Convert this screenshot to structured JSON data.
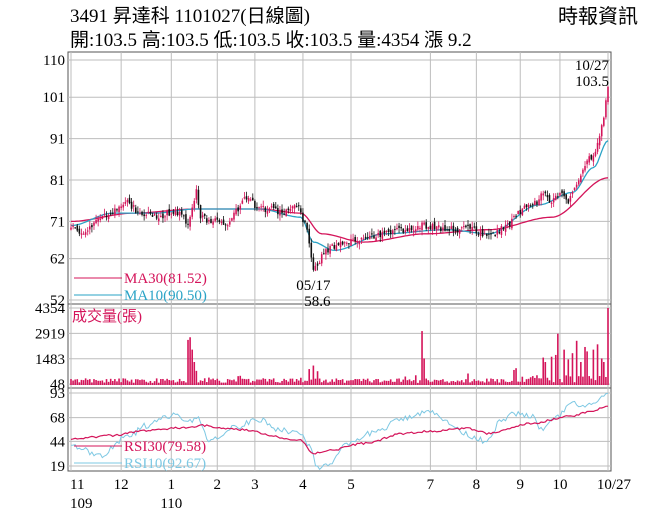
{
  "header": {
    "title": "3491  昇達科 1101027(日線圖)",
    "source": "時報資訊",
    "ohlc": "開:103.5 高:103.5 低:103.5 收:103.5 量:4354 漲 9.2"
  },
  "colors": {
    "up": "#d4145a",
    "down": "#111111",
    "ma30": "#d4145a",
    "ma10": "#2aa3c6",
    "volume": "#d4145a",
    "rsi30": "#d4145a",
    "rsi10": "#7ec8e3",
    "grid": "#bdbdbd"
  },
  "chart_data": [
    {
      "type": "candlestick",
      "panel": "price",
      "yticks": [
        "110",
        "101",
        "91",
        "81",
        "71",
        "62",
        "52"
      ],
      "ylim": [
        52,
        110
      ],
      "grid": true,
      "annotations": [
        {
          "label": "10/27",
          "value": "103.5",
          "x": 257,
          "y": 103.5
        },
        {
          "label": "05/17",
          "value": "58.6",
          "x": 116,
          "y": 58.6
        }
      ],
      "legend": [
        {
          "name": "MA30",
          "text": "MA30(81.52)",
          "color": "ma30"
        },
        {
          "name": "MA10",
          "text": "MA10(90.50)",
          "color": "ma10"
        }
      ],
      "anchors": [
        [
          0,
          69.5
        ],
        [
          6,
          68
        ],
        [
          12,
          71
        ],
        [
          18,
          72.5
        ],
        [
          26,
          75.5
        ],
        [
          34,
          73
        ],
        [
          42,
          72
        ],
        [
          50,
          73.5
        ],
        [
          56,
          71
        ],
        [
          58,
          74
        ],
        [
          60,
          79
        ],
        [
          62,
          72
        ],
        [
          68,
          71
        ],
        [
          74,
          70
        ],
        [
          80,
          74
        ],
        [
          84,
          77
        ],
        [
          90,
          74
        ],
        [
          96,
          74
        ],
        [
          102,
          73
        ],
        [
          108,
          75
        ],
        [
          112,
          71
        ],
        [
          114,
          66
        ],
        [
          116,
          60
        ],
        [
          118,
          61
        ],
        [
          122,
          64
        ],
        [
          128,
          65.5
        ],
        [
          134,
          66
        ],
        [
          140,
          67
        ],
        [
          150,
          68
        ],
        [
          160,
          69
        ],
        [
          168,
          70
        ],
        [
          176,
          69.5
        ],
        [
          184,
          69
        ],
        [
          190,
          70
        ],
        [
          196,
          68
        ],
        [
          202,
          68
        ],
        [
          208,
          69.5
        ],
        [
          214,
          73
        ],
        [
          218,
          74.5
        ],
        [
          222,
          75.5
        ],
        [
          226,
          77.5
        ],
        [
          230,
          76
        ],
        [
          234,
          78
        ],
        [
          238,
          76
        ],
        [
          242,
          80
        ],
        [
          246,
          84
        ],
        [
          248,
          86
        ],
        [
          251,
          88
        ],
        [
          253,
          92
        ],
        [
          255,
          96
        ],
        [
          257,
          103.5
        ]
      ],
      "ma30_anchors": [
        [
          0,
          71
        ],
        [
          30,
          73
        ],
        [
          60,
          74
        ],
        [
          90,
          74
        ],
        [
          110,
          73
        ],
        [
          120,
          68
        ],
        [
          140,
          66
        ],
        [
          170,
          68
        ],
        [
          200,
          69
        ],
        [
          230,
          72
        ],
        [
          257,
          81.52
        ]
      ],
      "ma10_anchors": [
        [
          0,
          70
        ],
        [
          20,
          73
        ],
        [
          40,
          73
        ],
        [
          60,
          74
        ],
        [
          90,
          74
        ],
        [
          110,
          72
        ],
        [
          116,
          66
        ],
        [
          126,
          64
        ],
        [
          150,
          68
        ],
        [
          180,
          69
        ],
        [
          200,
          68
        ],
        [
          224,
          75
        ],
        [
          240,
          78
        ],
        [
          250,
          84
        ],
        [
          257,
          90.5
        ]
      ]
    },
    {
      "type": "bar",
      "panel": "volume",
      "title": "成交量(張)",
      "yticks": [
        "4354",
        "2919",
        "1483",
        "48"
      ],
      "ylim": [
        0,
        4354
      ],
      "spikes": [
        [
          56,
          2550
        ],
        [
          57,
          2700
        ],
        [
          58,
          2000
        ],
        [
          59,
          1300
        ],
        [
          60,
          800
        ],
        [
          64,
          380
        ],
        [
          66,
          420
        ],
        [
          80,
          500
        ],
        [
          81,
          520
        ],
        [
          96,
          300
        ],
        [
          110,
          410
        ],
        [
          114,
          900
        ],
        [
          116,
          1100
        ],
        [
          118,
          780
        ],
        [
          160,
          480
        ],
        [
          165,
          550
        ],
        [
          168,
          3050
        ],
        [
          169,
          1500
        ],
        [
          190,
          650
        ],
        [
          212,
          850
        ],
        [
          213,
          950
        ],
        [
          222,
          400
        ],
        [
          226,
          1550
        ],
        [
          227,
          1300
        ],
        [
          230,
          1600
        ],
        [
          232,
          1700
        ],
        [
          233,
          2900
        ],
        [
          236,
          2000
        ],
        [
          238,
          1450
        ],
        [
          240,
          1800
        ],
        [
          242,
          2500
        ],
        [
          244,
          1300
        ],
        [
          246,
          2150
        ],
        [
          247,
          1900
        ],
        [
          250,
          2000
        ],
        [
          252,
          2300
        ],
        [
          254,
          1500
        ],
        [
          255,
          1300
        ],
        [
          257,
          4354
        ]
      ]
    },
    {
      "type": "line",
      "panel": "rsi",
      "yticks": [
        "93",
        "68",
        "44",
        "19"
      ],
      "ylim": [
        14,
        95
      ],
      "legend": [
        {
          "name": "RSI30",
          "text": "RSI30(79.58)",
          "color": "rsi30"
        },
        {
          "name": "RSI10",
          "text": "RSI10(92.67)",
          "color": "rsi10"
        }
      ],
      "rsi30_anchors": [
        [
          0,
          46
        ],
        [
          20,
          50
        ],
        [
          35,
          55
        ],
        [
          56,
          58
        ],
        [
          62,
          60
        ],
        [
          80,
          56
        ],
        [
          110,
          45
        ],
        [
          116,
          32
        ],
        [
          124,
          35
        ],
        [
          140,
          42
        ],
        [
          160,
          52
        ],
        [
          170,
          54
        ],
        [
          190,
          57
        ],
        [
          200,
          52
        ],
        [
          220,
          62
        ],
        [
          240,
          70
        ],
        [
          250,
          75
        ],
        [
          257,
          79.58
        ]
      ],
      "rsi10_anchors": [
        [
          0,
          40
        ],
        [
          14,
          30
        ],
        [
          28,
          50
        ],
        [
          36,
          60
        ],
        [
          46,
          68
        ],
        [
          50,
          72
        ],
        [
          56,
          62
        ],
        [
          60,
          70
        ],
        [
          66,
          45
        ],
        [
          78,
          58
        ],
        [
          90,
          66
        ],
        [
          100,
          56
        ],
        [
          110,
          52
        ],
        [
          114,
          40
        ],
        [
          118,
          18
        ],
        [
          124,
          22
        ],
        [
          132,
          40
        ],
        [
          146,
          54
        ],
        [
          158,
          66
        ],
        [
          164,
          70
        ],
        [
          170,
          76
        ],
        [
          180,
          64
        ],
        [
          188,
          52
        ],
        [
          194,
          48
        ],
        [
          198,
          44
        ],
        [
          206,
          64
        ],
        [
          212,
          72
        ],
        [
          220,
          70
        ],
        [
          226,
          55
        ],
        [
          232,
          68
        ],
        [
          240,
          82
        ],
        [
          246,
          78
        ],
        [
          252,
          86
        ],
        [
          257,
          92.67
        ]
      ]
    }
  ],
  "xaxis": {
    "months": [
      {
        "label": "11",
        "x": 0
      },
      {
        "label": "12",
        "x": 24
      },
      {
        "label": "1",
        "x": 48
      },
      {
        "label": "2",
        "x": 70
      },
      {
        "label": "3",
        "x": 88
      },
      {
        "label": "4",
        "x": 111
      },
      {
        "label": "5",
        "x": 134
      },
      {
        "label": "7",
        "x": 172
      },
      {
        "label": "8",
        "x": 194
      },
      {
        "label": "9",
        "x": 215
      },
      {
        "label": "10",
        "x": 234
      },
      {
        "label": "10/27",
        "x": 257
      }
    ],
    "years": [
      {
        "label": "109",
        "x": 0
      },
      {
        "label": "110",
        "x": 48
      }
    ]
  }
}
